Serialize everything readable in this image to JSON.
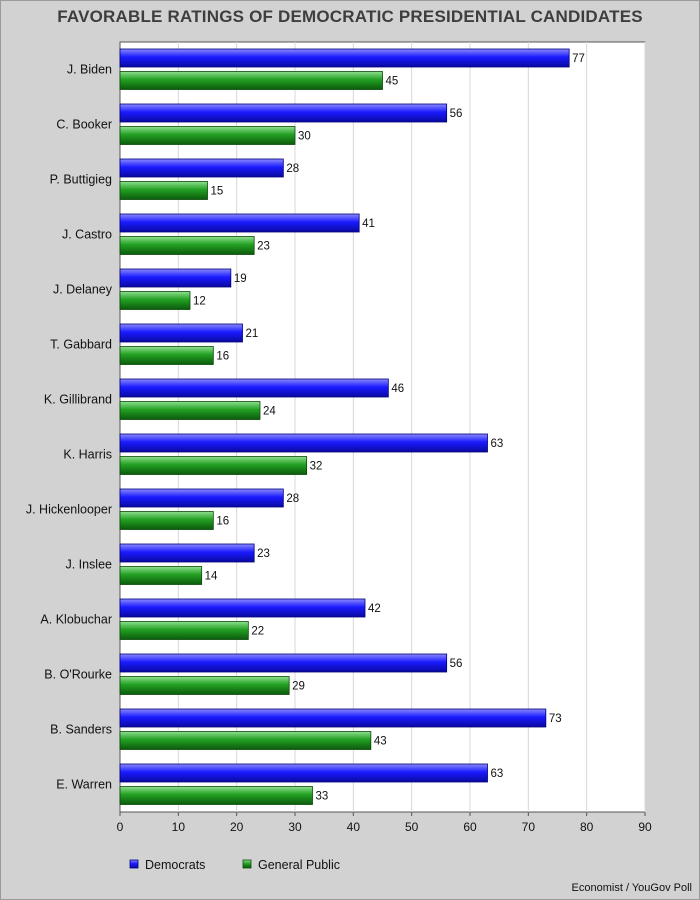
{
  "chart_data": {
    "type": "bar",
    "orientation": "horizontal",
    "title": "FAVORABLE RATINGS OF DEMOCRATIC PRESIDENTIAL CANDIDATES",
    "categories": [
      "J. Biden",
      "C. Booker",
      "P. Buttigieg",
      "J. Castro",
      "J. Delaney",
      "T. Gabbard",
      "K. Gillibrand",
      "K. Harris",
      "J. Hickenlooper",
      "J. Inslee",
      "A. Klobuchar",
      "B. O'Rourke",
      "B. Sanders",
      "E. Warren"
    ],
    "series": [
      {
        "name": "Democrats",
        "color": "#1a1aff",
        "values": [
          77,
          56,
          28,
          41,
          19,
          21,
          46,
          63,
          28,
          23,
          42,
          56,
          73,
          63
        ]
      },
      {
        "name": "General Public",
        "color": "#22a022",
        "values": [
          45,
          30,
          15,
          23,
          12,
          16,
          24,
          32,
          16,
          14,
          22,
          29,
          43,
          33
        ]
      }
    ],
    "xlim": [
      0,
      90
    ],
    "xticks": [
      0,
      10,
      20,
      30,
      40,
      50,
      60,
      70,
      80,
      90
    ],
    "grid": true,
    "legend_position": "bottom-left",
    "source": "Economist / YouGov Poll"
  }
}
